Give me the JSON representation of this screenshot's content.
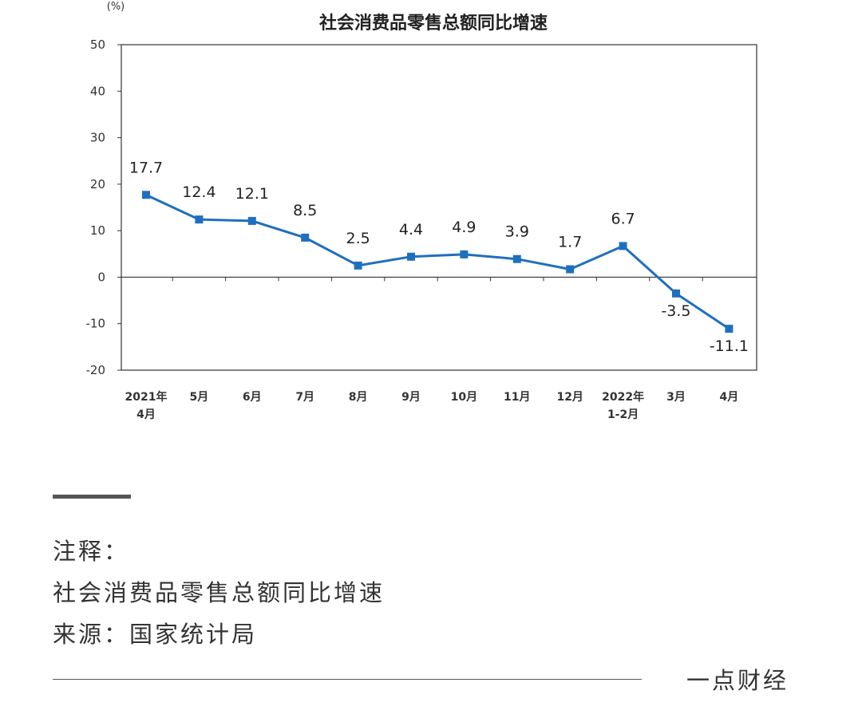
{
  "chart_data": {
    "type": "line",
    "title": "社会消费品零售总额同比增速",
    "unit": "(%)",
    "categories": [
      [
        "2021年",
        "4月"
      ],
      [
        "5月"
      ],
      [
        "6月"
      ],
      [
        "7月"
      ],
      [
        "8月"
      ],
      [
        "9月"
      ],
      [
        "10月"
      ],
      [
        "11月"
      ],
      [
        "12月"
      ],
      [
        "2022年",
        "1-2月"
      ],
      [
        "3月"
      ],
      [
        "4月"
      ]
    ],
    "values": [
      17.7,
      12.4,
      12.1,
      8.5,
      2.5,
      4.4,
      4.9,
      3.9,
      1.7,
      6.7,
      -3.5,
      -11.1
    ],
    "data_labels": [
      "17.7",
      "12.4",
      "12.1",
      "8.5",
      "2.5",
      "4.4",
      "4.9",
      "3.9",
      "1.7",
      "6.7",
      "-3.5",
      "-11.1"
    ],
    "yticks": [
      50,
      40,
      30,
      20,
      10,
      0,
      -10,
      -20
    ],
    "ylim": [
      -20,
      50
    ],
    "grid": false,
    "line_color": "#1f6fbf",
    "marker_color": "#1f6fbf"
  },
  "notes": {
    "heading": "注释：",
    "description": "社会消费品零售总额同比增速",
    "source": "来源：国家统计局"
  },
  "brand": "一点财经"
}
